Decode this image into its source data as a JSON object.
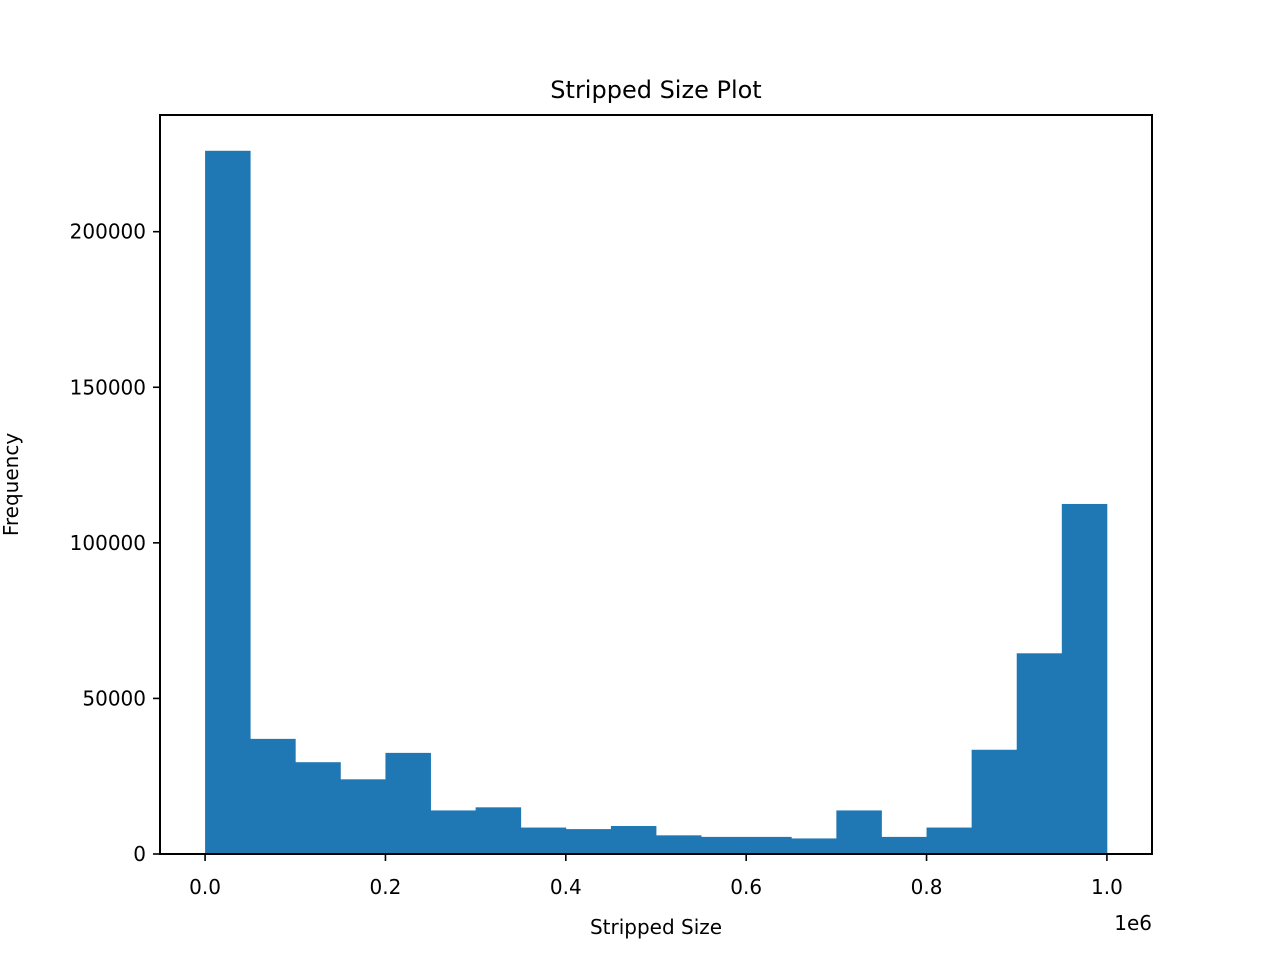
{
  "chart_data": {
    "type": "bar",
    "title": "Stripped Size Plot",
    "xlabel": "Stripped Size",
    "ylabel": "Frequency",
    "x_offset_text": "1e6",
    "xlim": [
      -0.05,
      1.05
    ],
    "ylim": [
      0,
      237500
    ],
    "x_ticks": [
      0.0,
      0.2,
      0.4,
      0.6,
      0.8,
      1.0
    ],
    "x_tick_labels": [
      "0.0",
      "0.2",
      "0.4",
      "0.6",
      "0.8",
      "1.0"
    ],
    "y_ticks": [
      0,
      50000,
      100000,
      150000,
      200000
    ],
    "y_tick_labels": [
      "0",
      "50000",
      "100000",
      "150000",
      "200000"
    ],
    "bin_edges": [
      0.0,
      0.05,
      0.1,
      0.15,
      0.2,
      0.25,
      0.3,
      0.35,
      0.4,
      0.45,
      0.5,
      0.55,
      0.6,
      0.65,
      0.7,
      0.75,
      0.8,
      0.85,
      0.9,
      0.95,
      1.0
    ],
    "values": [
      226000,
      37000,
      29500,
      24000,
      32500,
      14000,
      15000,
      8500,
      8000,
      9000,
      6000,
      5500,
      5500,
      5000,
      14000,
      5500,
      8500,
      33500,
      64500,
      112500
    ],
    "bar_color": "#1f77b4",
    "grid": false,
    "legend": "none"
  }
}
